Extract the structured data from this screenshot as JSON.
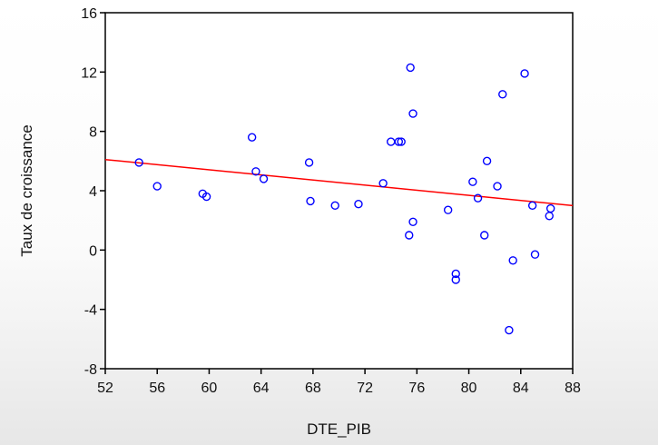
{
  "chart_data": {
    "type": "scatter",
    "title": "",
    "xlabel": "DTE_PIB",
    "ylabel": "Taux de croissance",
    "xlim": [
      52,
      88
    ],
    "ylim": [
      -8,
      16
    ],
    "x_ticks": [
      52,
      56,
      60,
      64,
      68,
      72,
      76,
      80,
      84,
      88
    ],
    "y_ticks": [
      -8,
      -4,
      0,
      4,
      8,
      12,
      16
    ],
    "grid": false,
    "legend": "none",
    "colors": {
      "points": "#0000ff",
      "fit_line": "#ff0000",
      "axes": "#000000"
    },
    "series": [
      {
        "points": [
          {
            "x": 54.6,
            "y": 5.9
          },
          {
            "x": 56.0,
            "y": 4.3
          },
          {
            "x": 59.5,
            "y": 3.8
          },
          {
            "x": 59.8,
            "y": 3.6
          },
          {
            "x": 63.3,
            "y": 7.6
          },
          {
            "x": 63.6,
            "y": 5.3
          },
          {
            "x": 64.2,
            "y": 4.8
          },
          {
            "x": 67.7,
            "y": 5.9
          },
          {
            "x": 67.8,
            "y": 3.3
          },
          {
            "x": 69.7,
            "y": 3.0
          },
          {
            "x": 71.5,
            "y": 3.1
          },
          {
            "x": 73.4,
            "y": 4.5
          },
          {
            "x": 74.0,
            "y": 7.3
          },
          {
            "x": 74.6,
            "y": 7.3
          },
          {
            "x": 74.8,
            "y": 7.3
          },
          {
            "x": 75.4,
            "y": 1.0
          },
          {
            "x": 75.5,
            "y": 12.3
          },
          {
            "x": 75.7,
            "y": 9.2
          },
          {
            "x": 75.7,
            "y": 1.9
          },
          {
            "x": 78.4,
            "y": 2.7
          },
          {
            "x": 79.0,
            "y": -1.6
          },
          {
            "x": 79.0,
            "y": -2.0
          },
          {
            "x": 80.3,
            "y": 4.6
          },
          {
            "x": 80.7,
            "y": 3.5
          },
          {
            "x": 81.2,
            "y": 1.0
          },
          {
            "x": 81.4,
            "y": 6.0
          },
          {
            "x": 82.2,
            "y": 4.3
          },
          {
            "x": 82.6,
            "y": 10.5
          },
          {
            "x": 83.1,
            "y": -5.4
          },
          {
            "x": 83.4,
            "y": -0.7
          },
          {
            "x": 84.3,
            "y": 11.9
          },
          {
            "x": 84.9,
            "y": 3.0
          },
          {
            "x": 85.1,
            "y": -0.3
          },
          {
            "x": 86.2,
            "y": 2.3
          },
          {
            "x": 86.3,
            "y": 2.8
          }
        ]
      }
    ],
    "fit_line": {
      "x": [
        52,
        88
      ],
      "y": [
        6.1,
        3.0
      ]
    }
  }
}
